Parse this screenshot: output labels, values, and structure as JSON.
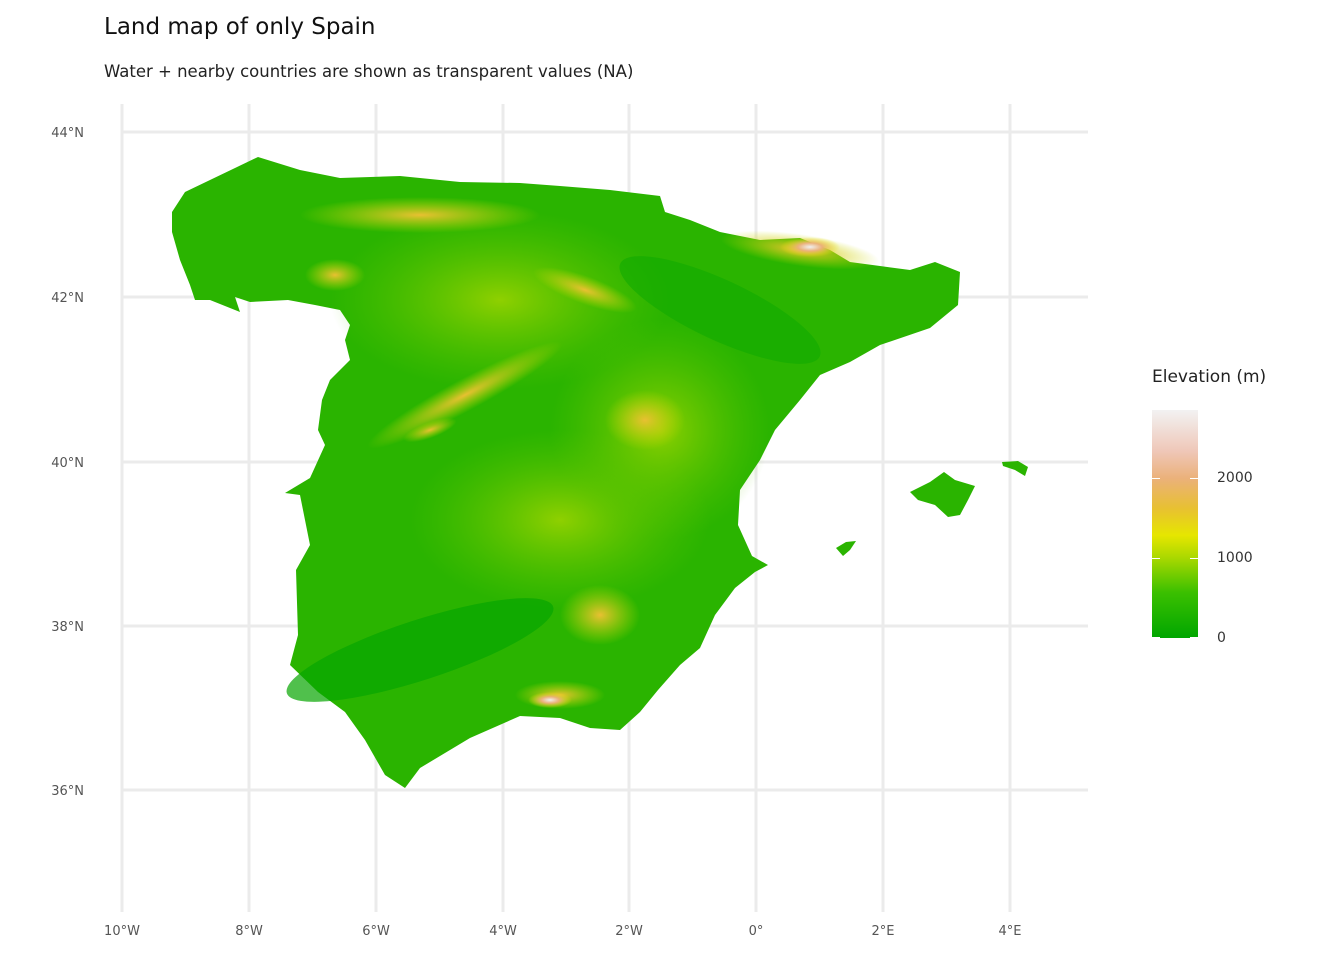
{
  "title": "Land map of only Spain",
  "subtitle": "Water + nearby countries are shown as transparent values (NA)",
  "map": {
    "region": "Spain",
    "lat_ticks": [
      "44°N",
      "42°N",
      "40°N",
      "38°N",
      "36°N"
    ],
    "lon_ticks": [
      "10°W",
      "8°W",
      "6°W",
      "4°W",
      "2°W",
      "0°",
      "2°E",
      "4°E"
    ],
    "lat_values": [
      44,
      42,
      40,
      38,
      36
    ],
    "lon_values": [
      -10,
      -8,
      -6,
      -4,
      -2,
      0,
      2,
      4
    ],
    "grid": true,
    "colors": {
      "low": "#00a600",
      "mid": "#e6e600",
      "high": "#ebb17a",
      "peak": "#f2f2f2",
      "grid": "#ebebeb"
    }
  },
  "legend": {
    "title": "Elevation (m)",
    "labels": [
      "2000",
      "1000",
      "0"
    ],
    "values": [
      2000,
      1000,
      0
    ],
    "max_value": 2850,
    "placement": "right"
  }
}
